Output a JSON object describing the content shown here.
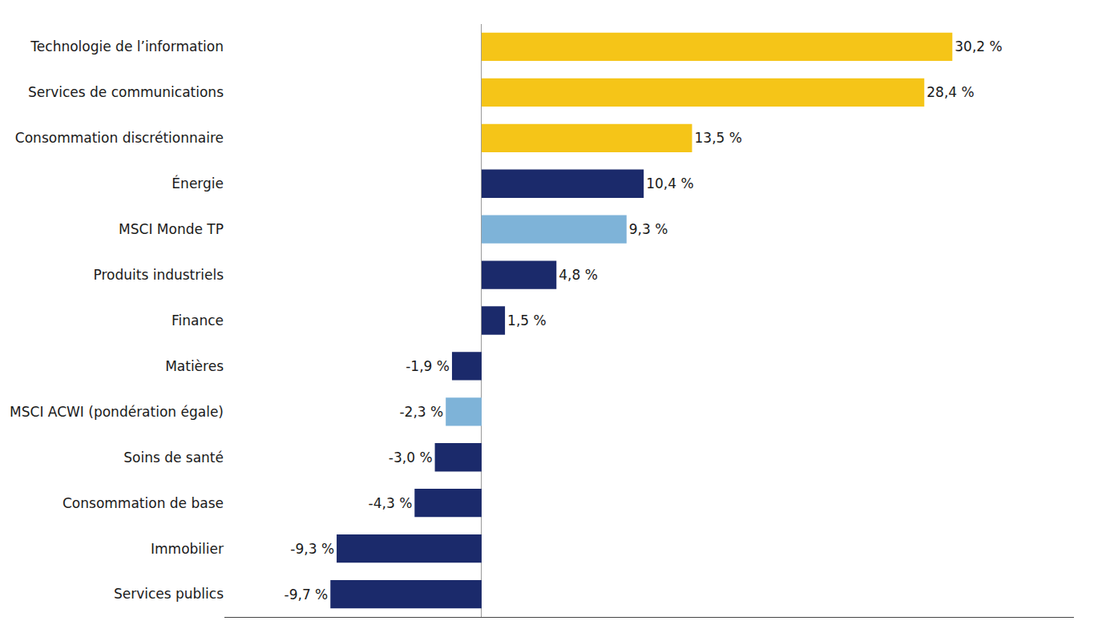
{
  "chart_data": {
    "type": "bar",
    "orientation": "horizontal",
    "categories": [
      "Technologie de l’information",
      "Services de communications",
      "Consommation discrétionnaire",
      "Énergie",
      "MSCI Monde TP",
      "Produits industriels",
      "Finance",
      "Matières",
      "MSCI ACWI (pondération égale)",
      "Soins de santé",
      "Consommation de base",
      "Immobilier",
      "Services publics"
    ],
    "values": [
      30.2,
      28.4,
      13.5,
      10.4,
      9.3,
      4.8,
      1.5,
      -1.9,
      -2.3,
      -3.0,
      -4.3,
      -9.3,
      -9.7
    ],
    "value_labels": [
      "30,2 %",
      "28,4 %",
      "13,5 %",
      "10,4 %",
      "9,3 %",
      "4,8 %",
      "1,5 %",
      "-1,9 %",
      "-2,3 %",
      "-3,0 %",
      "-4,3 %",
      "-9,3 %",
      "-9,7 %"
    ],
    "colors": [
      "#F5C518",
      "#F5C518",
      "#F5C518",
      "#1B2A6B",
      "#7EB3D8",
      "#1B2A6B",
      "#1B2A6B",
      "#1B2A6B",
      "#7EB3D8",
      "#1B2A6B",
      "#1B2A6B",
      "#1B2A6B",
      "#1B2A6B"
    ],
    "xlim": [
      -16.5,
      38
    ],
    "data_labels": true,
    "tick_labels": "y",
    "grid": false
  }
}
